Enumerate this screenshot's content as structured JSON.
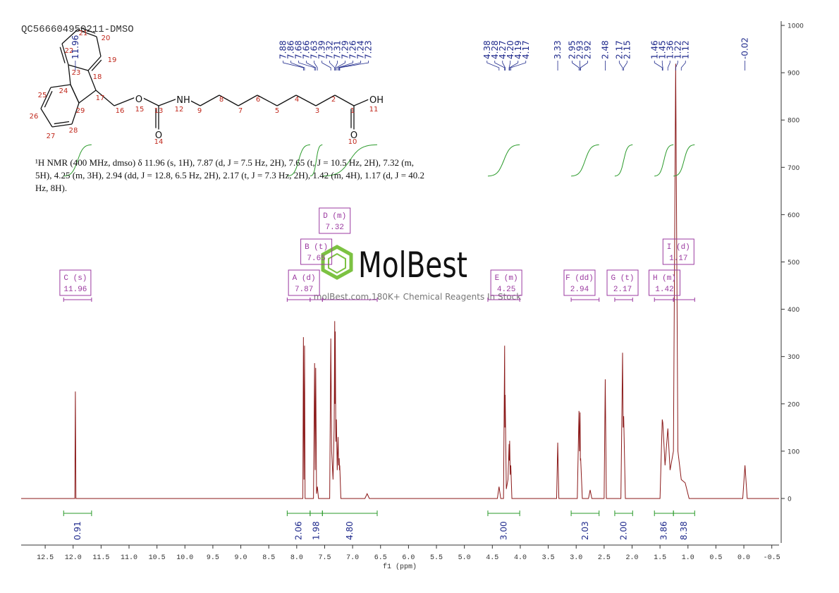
{
  "chart_data": {
    "type": "nmr",
    "title": "QC566604950211-DMSO",
    "x_label": "f1 (ppm)",
    "xlim": [
      12.93,
      -0.63
    ],
    "ylim": [
      -94,
      1009
    ],
    "xticks": [
      12.5,
      {
        "value": 12,
        "label": "12.0"
      },
      11.5,
      {
        "value": 11,
        "label": "11.0"
      },
      10.5,
      {
        "value": 10,
        "label": "10.0"
      },
      9.5,
      {
        "value": 9,
        "label": "9.0"
      },
      8.5,
      {
        "value": 8,
        "label": "8.0"
      },
      7.5,
      {
        "value": 7,
        "label": "7.0"
      },
      6.5,
      {
        "value": 6,
        "label": "6.0"
      },
      5.5,
      {
        "value": 5,
        "label": "5.0"
      },
      4.5,
      {
        "value": 4,
        "label": "4.0"
      },
      3.5,
      {
        "value": 3,
        "label": "3.0"
      },
      2.5,
      {
        "value": 2,
        "label": "2.0"
      },
      1.5,
      {
        "value": 1,
        "label": "1.0"
      },
      0.5,
      {
        "value": 0,
        "label": "0.0"
      },
      -0.5
    ],
    "yticks": [
      0,
      100,
      200,
      300,
      400,
      500,
      600,
      700,
      800,
      900,
      1000
    ],
    "series": [
      {
        "color": "#8b1a1a",
        "x": [
          12.93,
          12.0,
          11.97,
          11.96,
          11.95,
          7.92,
          7.89,
          7.88,
          7.87,
          7.86,
          7.85,
          7.7,
          7.68,
          7.67,
          7.66,
          7.645,
          7.63,
          7.61,
          7.41,
          7.39,
          7.375,
          7.35,
          7.33,
          7.32,
          7.315,
          7.31,
          7.3,
          7.29,
          7.275,
          7.26,
          7.25,
          7.24,
          7.235,
          7.23,
          7.21,
          6.78,
          6.74,
          6.7,
          4.41,
          4.38,
          4.35,
          4.3,
          4.28,
          4.275,
          4.27,
          4.25,
          4.22,
          4.2,
          4.195,
          4.19,
          4.18,
          4.17,
          4.15,
          3.35,
          3.33,
          3.31,
          2.98,
          2.95,
          2.94,
          2.93,
          2.925,
          2.92,
          2.89,
          2.78,
          2.75,
          2.72,
          2.5,
          2.48,
          2.46,
          2.2,
          2.17,
          2.16,
          2.15,
          2.12,
          1.5,
          1.46,
          1.45,
          1.41,
          1.36,
          1.32,
          1.26,
          1.22,
          1.18,
          1.12,
          1.05,
          0.98,
          0.02,
          -0.02,
          -0.06,
          -0.63
        ],
        "values": [
          0,
          0,
          0,
          226,
          0,
          0,
          0,
          341,
          40,
          323,
          0,
          0,
          286,
          60,
          276,
          10,
          25,
          0,
          0,
          338,
          100,
          40,
          150,
          375,
          200,
          353,
          120,
          167,
          60,
          130,
          70,
          85,
          60,
          70,
          0,
          0,
          10,
          0,
          0,
          25,
          0,
          0,
          323,
          150,
          219,
          20,
          40,
          115,
          80,
          122,
          50,
          70,
          0,
          0,
          118,
          0,
          0,
          185,
          100,
          182,
          80,
          85,
          0,
          0,
          18,
          0,
          0,
          252,
          0,
          0,
          308,
          150,
          174,
          0,
          0,
          167,
          160,
          70,
          148,
          60,
          100,
          919,
          100,
          40,
          33,
          0,
          0,
          70,
          0,
          0
        ]
      }
    ],
    "peak_labels": [
      11.96,
      7.88,
      7.86,
      7.68,
      7.66,
      7.63,
      7.39,
      7.32,
      7.31,
      7.29,
      7.26,
      7.24,
      7.23,
      4.38,
      4.28,
      4.27,
      {
        "value": 4.2,
        "label": "4.20"
      },
      4.19,
      4.17,
      3.33,
      2.95,
      2.93,
      2.92,
      2.48,
      2.17,
      2.15,
      1.46,
      1.45,
      1.36,
      1.22,
      1.12,
      -0.02
    ],
    "multiplets": [
      {
        "label": "C (s)",
        "shift": 11.96,
        "range": [
          12.17,
          11.67
        ]
      },
      {
        "label": "A (d)",
        "shift": 7.87,
        "range": [
          8.17,
          7.76
        ]
      },
      {
        "label": "B (t)",
        "shift": 7.65,
        "range": [
          7.76,
          7.54
        ]
      },
      {
        "label": "D (m)",
        "shift": 7.32,
        "range": [
          7.54,
          6.56
        ]
      },
      {
        "label": "E (m)",
        "shift": 4.25,
        "range": [
          4.58,
          4.01
        ]
      },
      {
        "label": "F (dd)",
        "shift": 2.94,
        "range": [
          3.09,
          2.59
        ]
      },
      {
        "label": "G (t)",
        "shift": 2.17,
        "range": [
          2.31,
          1.99
        ]
      },
      {
        "label": "H (m)",
        "shift": 1.42,
        "range": [
          1.6,
          1.26
        ]
      },
      {
        "label": "I (d)",
        "shift": 1.17,
        "range": [
          1.26,
          0.88
        ]
      }
    ],
    "integrals": [
      {
        "range": [
          12.17,
          11.67
        ],
        "value": 0.91
      },
      {
        "range": [
          8.17,
          7.76
        ],
        "value": 2.06
      },
      {
        "range": [
          7.76,
          7.54
        ],
        "value": 1.98
      },
      {
        "range": [
          7.54,
          6.56
        ],
        "value": 4.8,
        "label": "4.80"
      },
      {
        "range": [
          4.58,
          4.01
        ],
        "value": 3,
        "label": "3.00"
      },
      {
        "range": [
          3.09,
          2.59
        ],
        "value": 2.03
      },
      {
        "range": [
          2.31,
          1.99
        ],
        "value": 2,
        "label": "2.00"
      },
      {
        "range": [
          1.6,
          1.26
        ],
        "value": 3.86
      },
      {
        "range": [
          1.26,
          0.88
        ],
        "value": 8.38
      }
    ]
  },
  "nmr_description": "¹H NMR (400 MHz, dmso) δ 11.96 (s, 1H), 7.87 (d, J = 7.5 Hz, 2H), 7.65 (t, J = 10.5 Hz, 2H), 7.32 (m, 5H), 4.25 (m, 3H), 2.94 (dd, J = 12.8, 6.5 Hz, 2H), 2.17 (t, J = 7.3 Hz, 2H), 1.42 (m, 4H), 1.17 (d, J = 40.2 Hz, 8H).",
  "structure": {
    "symbols": [
      "O",
      "NH",
      "O",
      "OH",
      "O"
    ],
    "numbers": [
      "21",
      "20",
      "22",
      "19",
      "23",
      "18",
      "24",
      "17",
      "25",
      "29",
      "16",
      "15",
      "13",
      "12",
      "9",
      "8",
      "7",
      "6",
      "5",
      "4",
      "3",
      "2",
      "1",
      "11",
      "26",
      "28",
      "27",
      "14",
      "10"
    ]
  },
  "watermark": {
    "brand": "MolBest",
    "tagline": "molBest.com,180K+ Chemical Reagents In Stock"
  }
}
